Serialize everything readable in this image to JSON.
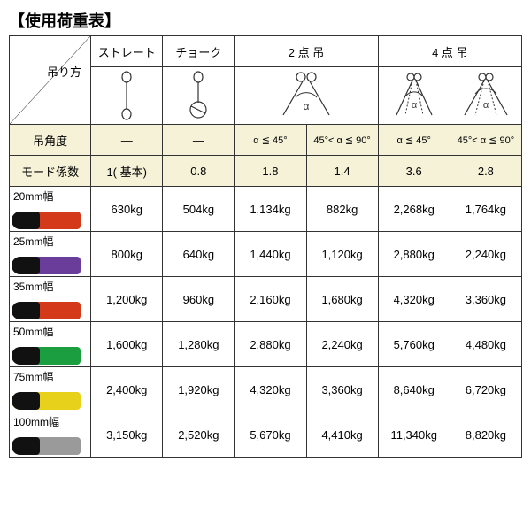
{
  "title": "【使用荷重表】",
  "header": {
    "corner_label": "吊り方",
    "methods": [
      "ストレート",
      "チョーク",
      "2 点 吊",
      "4 点 吊"
    ],
    "sub_2pt": [
      "α ≦ 45°",
      "45°< α ≦ 90°"
    ],
    "sub_4pt": [
      "α ≦ 45°",
      "45°< α ≦ 90°"
    ],
    "angle_label": "吊角度",
    "angle_straight": "—",
    "angle_choke": "—",
    "coef_label": "モード係数",
    "coef": [
      "1( 基本)",
      "0.8",
      "1.8",
      "1.4",
      "3.6",
      "2.8"
    ]
  },
  "rows": [
    {
      "label": "20mm幅",
      "color": "#d43a1a",
      "vals": [
        "630kg",
        "504kg",
        "1,134kg",
        "882kg",
        "2,268kg",
        "1,764kg"
      ]
    },
    {
      "label": "25mm幅",
      "color": "#6a3d9a",
      "vals": [
        "800kg",
        "640kg",
        "1,440kg",
        "1,120kg",
        "2,880kg",
        "2,240kg"
      ]
    },
    {
      "label": "35mm幅",
      "color": "#d43a1a",
      "vals": [
        "1,200kg",
        "960kg",
        "2,160kg",
        "1,680kg",
        "4,320kg",
        "3,360kg"
      ]
    },
    {
      "label": "50mm幅",
      "color": "#1a9e3f",
      "vals": [
        "1,600kg",
        "1,280kg",
        "2,880kg",
        "2,240kg",
        "5,760kg",
        "4,480kg"
      ]
    },
    {
      "label": "75mm幅",
      "color": "#e8d11a",
      "vals": [
        "2,400kg",
        "1,920kg",
        "4,320kg",
        "3,360kg",
        "8,640kg",
        "6,720kg"
      ]
    },
    {
      "label": "100mm幅",
      "color": "#9a9a9a",
      "vals": [
        "3,150kg",
        "2,520kg",
        "5,670kg",
        "4,410kg",
        "11,340kg",
        "8,820kg"
      ]
    }
  ],
  "colors": {
    "border": "#333333",
    "header_band": "#f5f2d8",
    "text": "#222222"
  }
}
